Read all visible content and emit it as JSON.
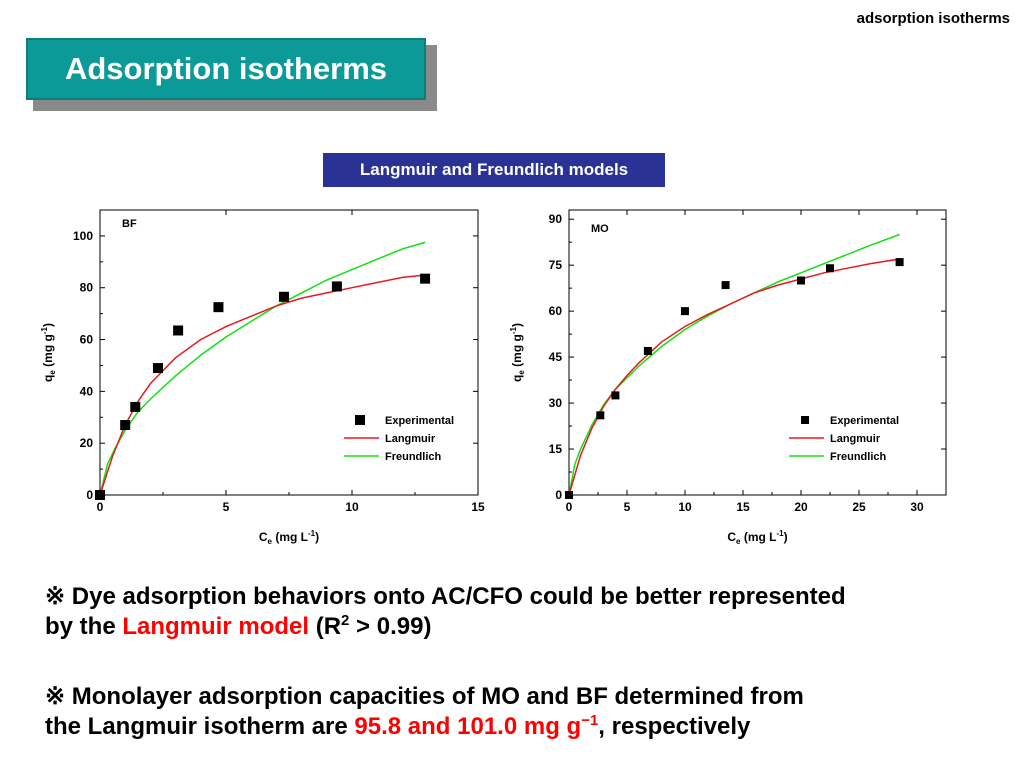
{
  "corner_label": "adsorption isotherms",
  "title": "Adsorption isotherms",
  "subtitle": "Langmuir and Freundlich models",
  "colors": {
    "title_bg": "#0b9a97",
    "subtitle_bg": "#2b3296",
    "langmuir": "#e8191f",
    "freundlich": "#11e011",
    "highlight": "#ff0000"
  },
  "chart_data": [
    {
      "type": "scatter",
      "panel_label": "BF",
      "xlabel": {
        "main": "C",
        "sub": "e",
        "unit": " (mg L",
        "sup": "-1",
        "close": ")"
      },
      "ylabel": {
        "main": "q",
        "sub": "e",
        "unit": " (mg g",
        "sup": "-1",
        "close": ")"
      },
      "xlim": [
        0,
        15
      ],
      "ylim": [
        0,
        110
      ],
      "xticks": [
        0,
        5,
        10,
        15
      ],
      "yticks": [
        0,
        20,
        40,
        60,
        80,
        100
      ],
      "legend": [
        "Experimental",
        "Langmuir",
        "Freundlich"
      ],
      "legend_position": "bottom-right",
      "experimental": [
        {
          "x": 0,
          "y": 0
        },
        {
          "x": 1,
          "y": 27
        },
        {
          "x": 1.4,
          "y": 34
        },
        {
          "x": 2.3,
          "y": 49
        },
        {
          "x": 3.1,
          "y": 63.5
        },
        {
          "x": 4.7,
          "y": 72.5
        },
        {
          "x": 7.3,
          "y": 76.5
        },
        {
          "x": 9.4,
          "y": 80.5
        },
        {
          "x": 12.9,
          "y": 83.5
        }
      ],
      "langmuir": [
        {
          "x": 0,
          "y": 0
        },
        {
          "x": 0.5,
          "y": 15
        },
        {
          "x": 1,
          "y": 27
        },
        {
          "x": 1.5,
          "y": 36
        },
        {
          "x": 2,
          "y": 43
        },
        {
          "x": 3,
          "y": 53
        },
        {
          "x": 4,
          "y": 60
        },
        {
          "x": 5,
          "y": 65
        },
        {
          "x": 6,
          "y": 69
        },
        {
          "x": 7,
          "y": 73
        },
        {
          "x": 8,
          "y": 76
        },
        {
          "x": 9,
          "y": 78
        },
        {
          "x": 10,
          "y": 80
        },
        {
          "x": 11,
          "y": 82
        },
        {
          "x": 12,
          "y": 84
        },
        {
          "x": 13,
          "y": 85
        }
      ],
      "freundlich": [
        {
          "x": 0,
          "y": 0
        },
        {
          "x": 0.3,
          "y": 12
        },
        {
          "x": 0.6,
          "y": 18
        },
        {
          "x": 1,
          "y": 25
        },
        {
          "x": 1.5,
          "y": 32
        },
        {
          "x": 2,
          "y": 37
        },
        {
          "x": 3,
          "y": 46
        },
        {
          "x": 4,
          "y": 54
        },
        {
          "x": 5,
          "y": 61
        },
        {
          "x": 6,
          "y": 67
        },
        {
          "x": 7,
          "y": 73
        },
        {
          "x": 8,
          "y": 78
        },
        {
          "x": 9,
          "y": 83
        },
        {
          "x": 10,
          "y": 87
        },
        {
          "x": 11,
          "y": 91
        },
        {
          "x": 12,
          "y": 95
        },
        {
          "x": 12.9,
          "y": 97.5
        }
      ]
    },
    {
      "type": "scatter",
      "panel_label": "MO",
      "xlabel": {
        "main": "C",
        "sub": "e",
        "unit": " (mg L",
        "sup": "-1",
        "close": ")"
      },
      "ylabel": {
        "main": "q",
        "sub": "e",
        "unit": " (mg g",
        "sup": "-1",
        "close": ")"
      },
      "xlim": [
        0,
        32.5
      ],
      "ylim": [
        0,
        93
      ],
      "xticks": [
        0,
        5,
        10,
        15,
        20,
        25,
        30
      ],
      "yticks": [
        0,
        15,
        30,
        45,
        60,
        75,
        90
      ],
      "legend": [
        "Experimental",
        "Langmuir",
        "Freundlich"
      ],
      "legend_position": "bottom-right",
      "experimental": [
        {
          "x": 0,
          "y": 0
        },
        {
          "x": 2.7,
          "y": 26
        },
        {
          "x": 4,
          "y": 32.5
        },
        {
          "x": 6.8,
          "y": 47
        },
        {
          "x": 10,
          "y": 60
        },
        {
          "x": 13.5,
          "y": 68.5
        },
        {
          "x": 20,
          "y": 70
        },
        {
          "x": 22.5,
          "y": 74
        },
        {
          "x": 28.5,
          "y": 76
        }
      ],
      "langmuir": [
        {
          "x": 0,
          "y": 0
        },
        {
          "x": 1,
          "y": 13
        },
        {
          "x": 2,
          "y": 22
        },
        {
          "x": 3,
          "y": 29
        },
        {
          "x": 4,
          "y": 34.5
        },
        {
          "x": 5,
          "y": 39
        },
        {
          "x": 6,
          "y": 43
        },
        {
          "x": 8,
          "y": 50
        },
        {
          "x": 10,
          "y": 55
        },
        {
          "x": 12,
          "y": 59
        },
        {
          "x": 14,
          "y": 62.5
        },
        {
          "x": 16,
          "y": 66
        },
        {
          "x": 18,
          "y": 68.5
        },
        {
          "x": 20,
          "y": 70.5
        },
        {
          "x": 22,
          "y": 72.5
        },
        {
          "x": 24,
          "y": 74
        },
        {
          "x": 26,
          "y": 75.5
        },
        {
          "x": 28.5,
          "y": 77
        }
      ],
      "freundlich": [
        {
          "x": 0,
          "y": 0
        },
        {
          "x": 0.5,
          "y": 10
        },
        {
          "x": 1,
          "y": 15
        },
        {
          "x": 2,
          "y": 23
        },
        {
          "x": 3,
          "y": 29.5
        },
        {
          "x": 4,
          "y": 34.5
        },
        {
          "x": 6,
          "y": 42
        },
        {
          "x": 8,
          "y": 48.5
        },
        {
          "x": 10,
          "y": 54
        },
        {
          "x": 12,
          "y": 58.5
        },
        {
          "x": 14,
          "y": 62.5
        },
        {
          "x": 16,
          "y": 66
        },
        {
          "x": 18,
          "y": 69.5
        },
        {
          "x": 20,
          "y": 72.5
        },
        {
          "x": 22,
          "y": 75.5
        },
        {
          "x": 24,
          "y": 78.5
        },
        {
          "x": 26,
          "y": 81.5
        },
        {
          "x": 28.5,
          "y": 85
        }
      ]
    }
  ],
  "notes": {
    "note1": {
      "marker": "※ ",
      "line1": "Dye adsorption behaviors onto AC/CFO could be better represented",
      "line2_pre": "by the ",
      "line2_highlight": "Langmuir model",
      "line2_mid": " (R",
      "line2_sup": "2",
      "line2_post": " > 0.99)"
    },
    "note2": {
      "marker": "※ ",
      "line1": "Monolayer adsorption capacities of MO and BF determined from",
      "line2_pre": "the  Langmuir isotherm are ",
      "line2_highlight": "95.8 and 101.0 mg g",
      "line2_sup": "−1",
      "line2_post": ", respectively"
    }
  }
}
